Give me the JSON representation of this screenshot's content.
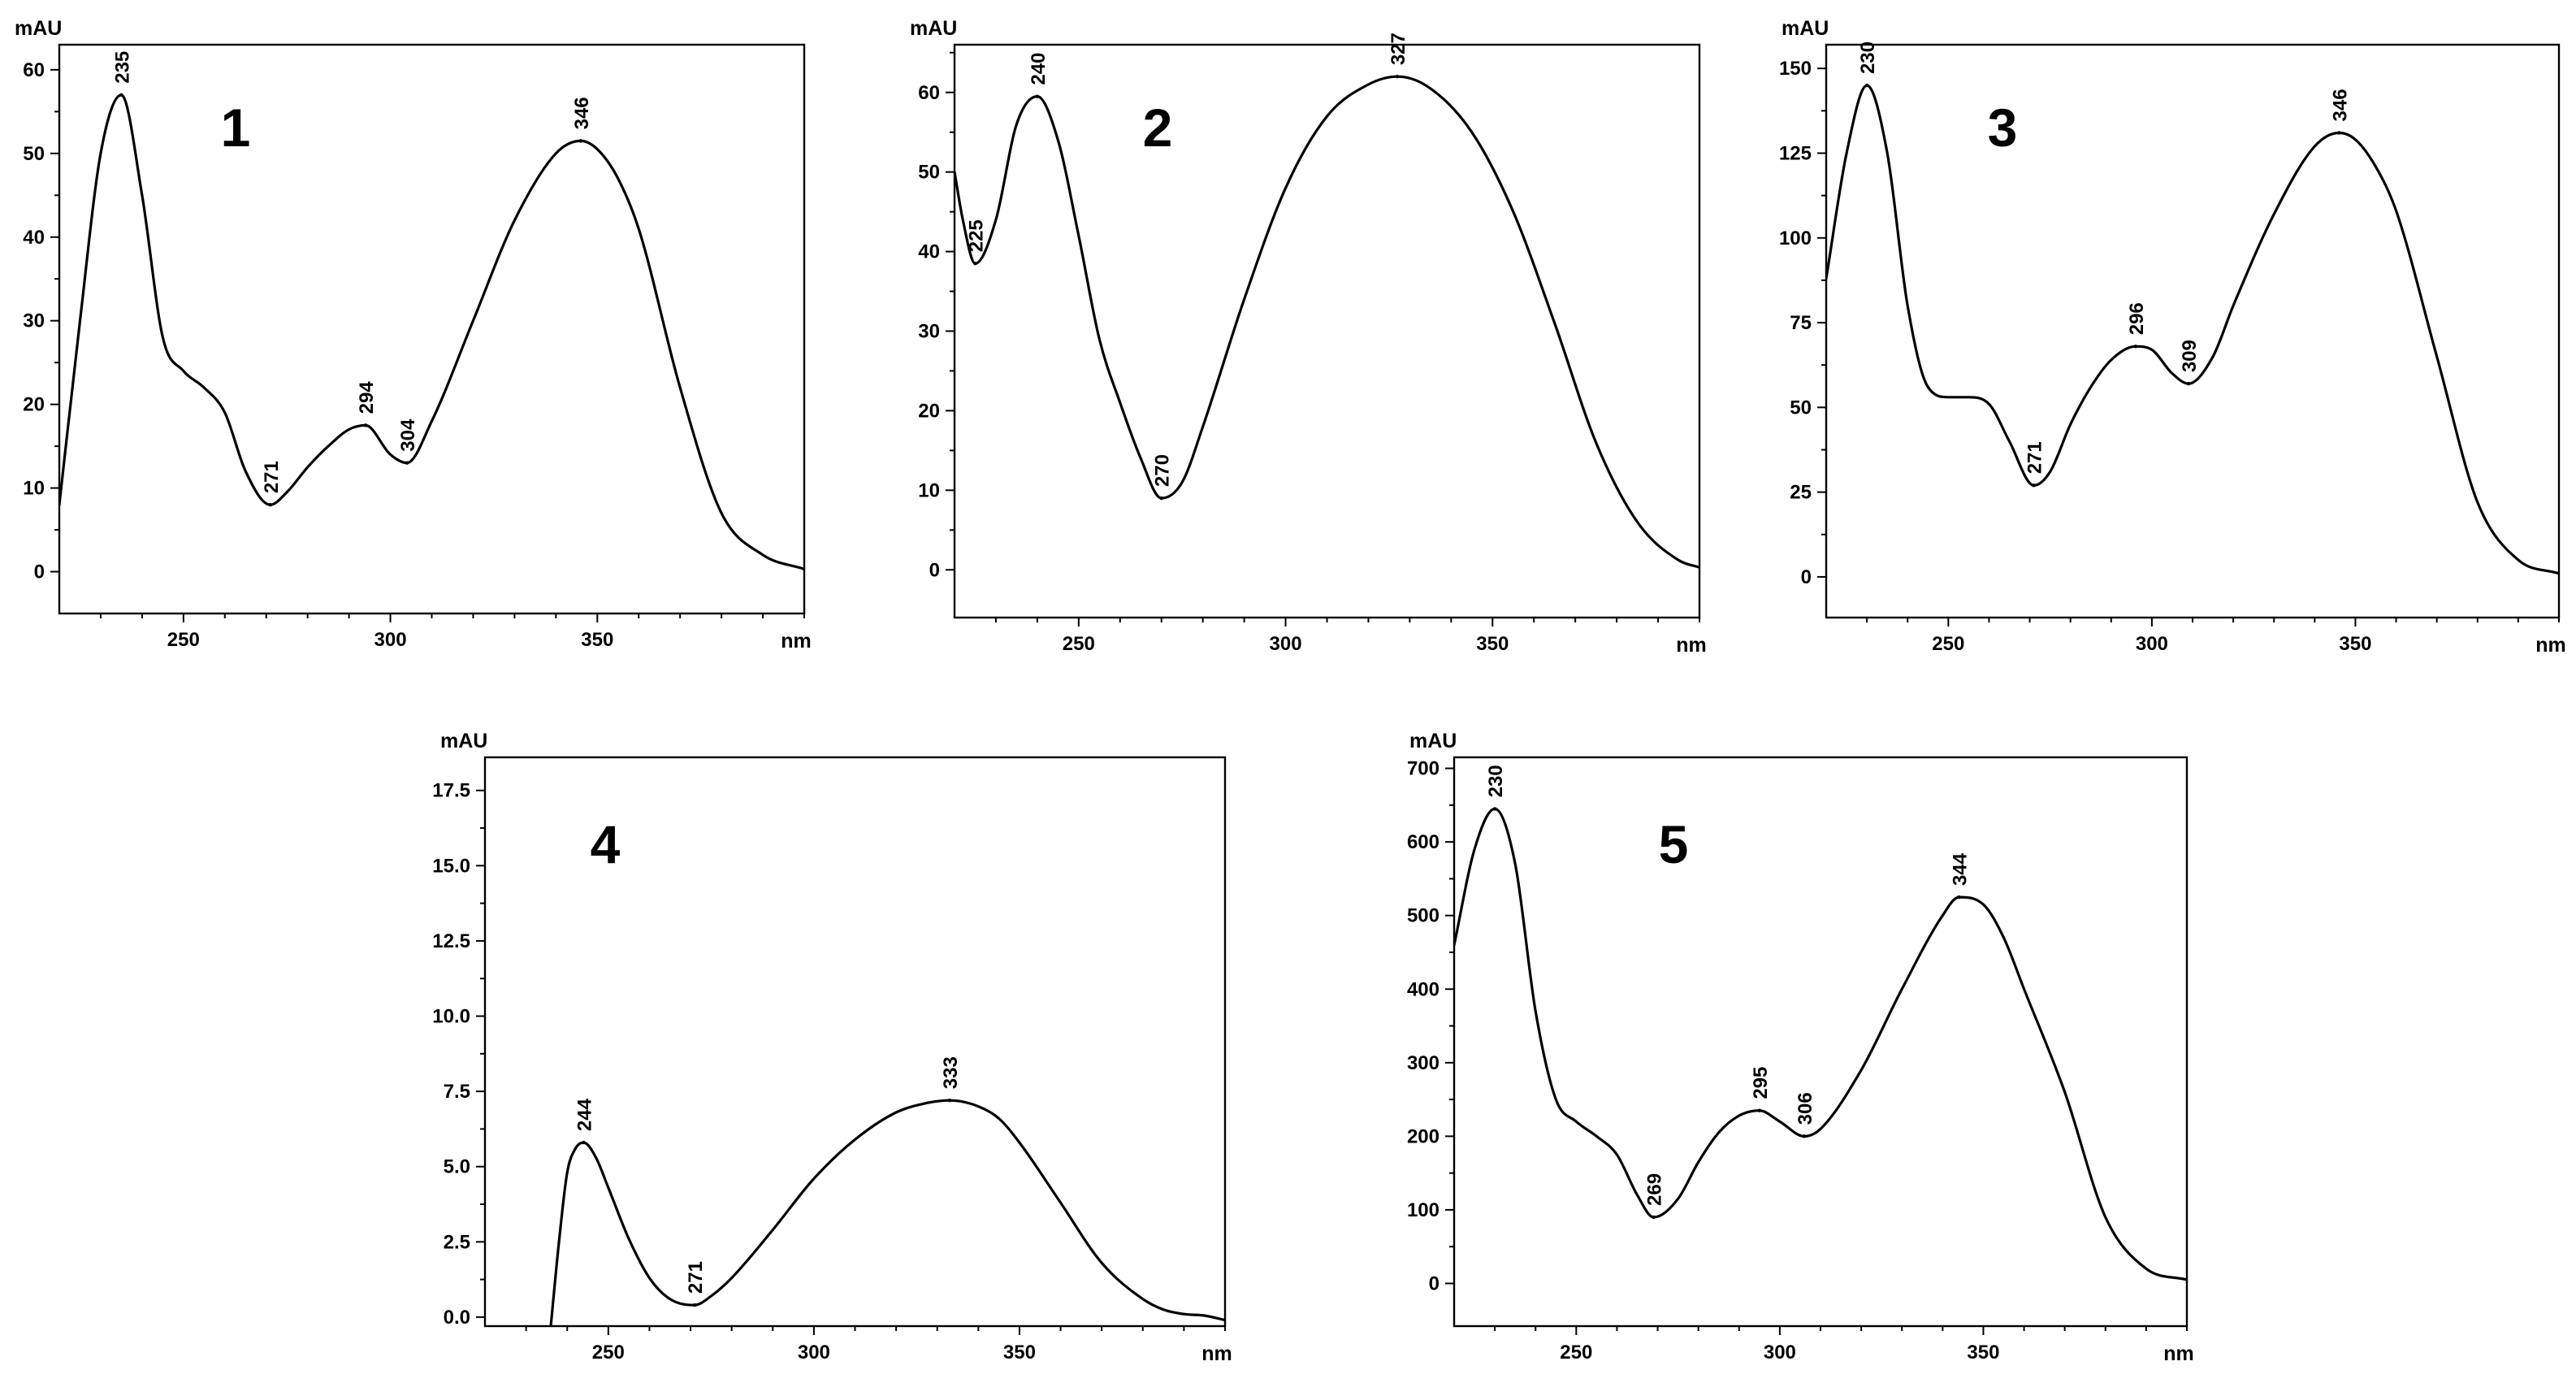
{
  "chart_data": [
    {
      "type": "line",
      "panel_label": "1",
      "ylabel": "mAU",
      "xlabel": "nm",
      "xlim": [
        220,
        400
      ],
      "ylim": [
        -5,
        63
      ],
      "xticks": [
        250,
        300,
        350
      ],
      "yticks": [
        0,
        10,
        20,
        30,
        40,
        50,
        60
      ],
      "x": [
        220,
        225,
        230,
        235,
        240,
        245,
        250,
        255,
        260,
        265,
        271,
        275,
        280,
        285,
        290,
        294,
        300,
        304,
        310,
        320,
        330,
        340,
        346,
        350,
        355,
        360,
        370,
        380,
        390,
        400
      ],
      "y": [
        8,
        30,
        50,
        57,
        45,
        28,
        24,
        22,
        19,
        12,
        8,
        9.5,
        12.5,
        15,
        17,
        17.5,
        14,
        13,
        18,
        30,
        42,
        50,
        51.5,
        50.5,
        47,
        41,
        22,
        7,
        2,
        0.3
      ],
      "peak_labels": [
        {
          "x": 235,
          "y": 57,
          "text": "235"
        },
        {
          "x": 271,
          "y": 8,
          "text": "271"
        },
        {
          "x": 294,
          "y": 17.5,
          "text": "294"
        },
        {
          "x": 304,
          "y": 13,
          "text": "304"
        },
        {
          "x": 346,
          "y": 51.5,
          "text": "346"
        }
      ]
    },
    {
      "type": "line",
      "panel_label": "2",
      "ylabel": "mAU",
      "xlabel": "nm",
      "xlim": [
        220,
        400
      ],
      "ylim": [
        -6,
        66
      ],
      "xticks": [
        250,
        300,
        350
      ],
      "yticks": [
        0,
        10,
        20,
        30,
        40,
        50,
        60
      ],
      "x": [
        220,
        222,
        225,
        230,
        235,
        240,
        245,
        250,
        255,
        260,
        265,
        270,
        275,
        280,
        290,
        300,
        310,
        320,
        327,
        335,
        345,
        355,
        365,
        375,
        385,
        395,
        400
      ],
      "y": [
        50,
        44,
        38.5,
        44,
        56,
        59.5,
        54,
        42,
        29,
        21,
        14,
        9,
        11,
        18,
        34,
        48,
        57,
        61,
        62,
        60.5,
        55,
        45,
        31,
        16,
        6,
        1.2,
        0.3
      ],
      "peak_labels": [
        {
          "x": 225,
          "y": 38.5,
          "text": "225"
        },
        {
          "x": 240,
          "y": 59.5,
          "text": "240"
        },
        {
          "x": 270,
          "y": 9,
          "text": "270"
        },
        {
          "x": 327,
          "y": 62,
          "text": "327"
        }
      ]
    },
    {
      "type": "line",
      "panel_label": "3",
      "ylabel": "mAU",
      "xlabel": "nm",
      "xlim": [
        220,
        400
      ],
      "ylim": [
        -12,
        157
      ],
      "xticks": [
        250,
        300,
        350
      ],
      "yticks": [
        0,
        25,
        50,
        75,
        100,
        125,
        150
      ],
      "x": [
        220,
        225,
        230,
        235,
        240,
        245,
        250,
        255,
        260,
        265,
        271,
        275,
        280,
        285,
        290,
        296,
        300,
        305,
        309,
        315,
        320,
        330,
        340,
        346,
        350,
        355,
        360,
        370,
        380,
        390,
        400
      ],
      "y": [
        88,
        125,
        145,
        125,
        80,
        56,
        53,
        53,
        51,
        40,
        27,
        31,
        45,
        56,
        64,
        68,
        67,
        60,
        57,
        65,
        80,
        107,
        127,
        131,
        129,
        121,
        108,
        65,
        22,
        5,
        1
      ],
      "peak_labels": [
        {
          "x": 230,
          "y": 145,
          "text": "230"
        },
        {
          "x": 271,
          "y": 27,
          "text": "271"
        },
        {
          "x": 296,
          "y": 68,
          "text": "296"
        },
        {
          "x": 309,
          "y": 57,
          "text": "309"
        },
        {
          "x": 346,
          "y": 131,
          "text": "346"
        }
      ]
    },
    {
      "type": "line",
      "panel_label": "4",
      "ylabel": "mAU",
      "xlabel": "nm",
      "xlim": [
        220,
        400
      ],
      "ylim": [
        -0.3,
        18.6
      ],
      "xticks": [
        250,
        300,
        350
      ],
      "yticks": [
        0.0,
        2.5,
        5.0,
        7.5,
        10.0,
        12.5,
        15.0,
        17.5
      ],
      "yticklabels": [
        "0.0",
        "2.5",
        "5.0",
        "7.5",
        "10.0",
        "12.5",
        "15.0",
        "17.5"
      ],
      "x": [
        236,
        238,
        240,
        242,
        244,
        247,
        250,
        255,
        260,
        265,
        271,
        275,
        280,
        290,
        300,
        310,
        320,
        327,
        333,
        340,
        345,
        350,
        360,
        370,
        380,
        385,
        390,
        395,
        400
      ],
      "y": [
        -0.3,
        2.5,
        4.8,
        5.6,
        5.8,
        5.3,
        4.3,
        2.6,
        1.3,
        0.6,
        0.4,
        0.7,
        1.3,
        2.9,
        4.6,
        5.9,
        6.8,
        7.1,
        7.2,
        7.0,
        6.6,
        5.8,
        3.8,
        1.8,
        0.6,
        0.25,
        0.1,
        0.05,
        -0.1
      ],
      "peak_labels": [
        {
          "x": 244,
          "y": 5.8,
          "text": "244"
        },
        {
          "x": 271,
          "y": 0.4,
          "text": "271"
        },
        {
          "x": 333,
          "y": 7.2,
          "text": "333"
        }
      ]
    },
    {
      "type": "line",
      "panel_label": "5",
      "ylabel": "mAU",
      "xlabel": "nm",
      "xlim": [
        220,
        400
      ],
      "ylim": [
        -58,
        715
      ],
      "xticks": [
        250,
        300,
        350
      ],
      "yticks": [
        0,
        100,
        200,
        300,
        400,
        500,
        600,
        700
      ],
      "x": [
        220,
        225,
        230,
        235,
        240,
        245,
        250,
        255,
        260,
        265,
        269,
        275,
        280,
        285,
        290,
        295,
        300,
        306,
        310,
        320,
        330,
        340,
        344,
        350,
        355,
        360,
        370,
        380,
        390,
        400
      ],
      "y": [
        460,
        590,
        645,
        570,
        370,
        250,
        220,
        200,
        175,
        120,
        90,
        115,
        165,
        205,
        228,
        235,
        220,
        200,
        210,
        290,
        400,
        500,
        525,
        515,
        470,
        400,
        260,
        90,
        20,
        5
      ],
      "peak_labels": [
        {
          "x": 230,
          "y": 645,
          "text": "230"
        },
        {
          "x": 269,
          "y": 90,
          "text": "269"
        },
        {
          "x": 295,
          "y": 235,
          "text": "295"
        },
        {
          "x": 306,
          "y": 200,
          "text": "306"
        },
        {
          "x": 344,
          "y": 525,
          "text": "344"
        }
      ]
    }
  ]
}
